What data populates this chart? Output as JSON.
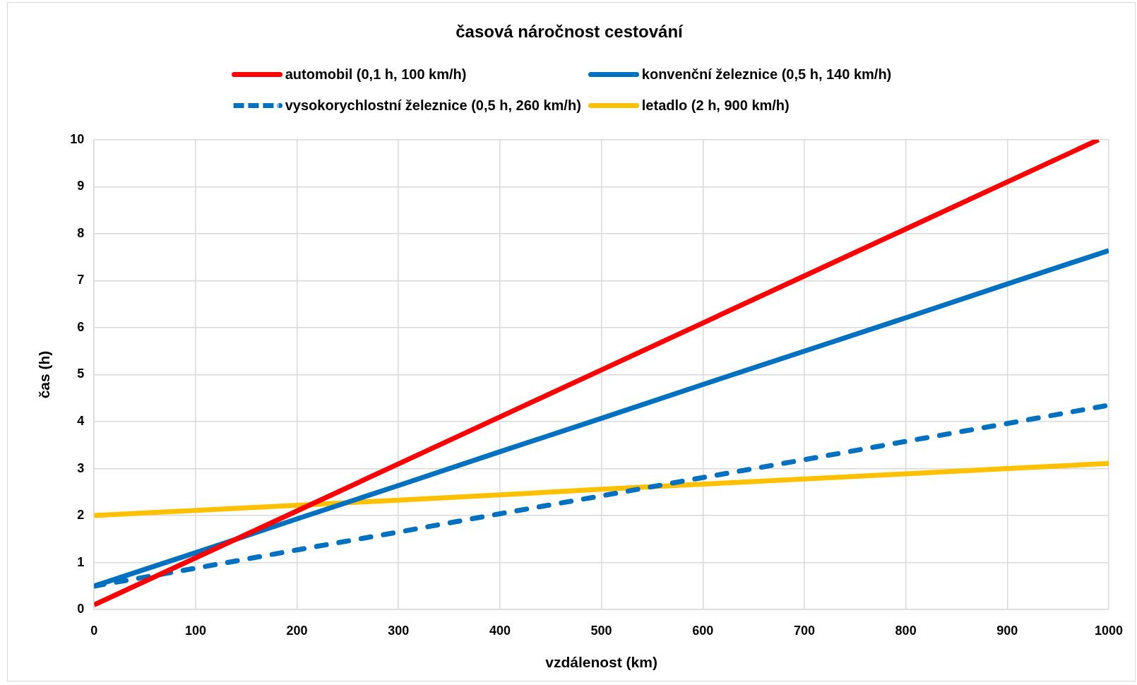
{
  "chart_data": {
    "type": "line",
    "title": "časová náročnost cestování",
    "xlabel": "vzdálenost (km)",
    "ylabel": "čas (h)",
    "x": [
      0,
      100,
      200,
      300,
      400,
      500,
      600,
      700,
      800,
      900,
      1000
    ],
    "series": [
      {
        "name": "automobil (0,1 h, 100 km/h)",
        "color": "#ff0000",
        "x": [
          0,
          100,
          200,
          300,
          400,
          500,
          600,
          700,
          800,
          900,
          990
        ],
        "values": [
          0.1,
          1.1,
          2.1,
          3.1,
          4.1,
          5.1,
          6.1,
          7.1,
          8.1,
          9.1,
          10
        ]
      },
      {
        "name": "konvenční železnice (0,5 h, 140 km/h)",
        "color": "#0070c0",
        "values": [
          0.5,
          1.21,
          1.93,
          2.64,
          3.36,
          4.07,
          4.79,
          5.5,
          6.21,
          6.93,
          7.64
        ]
      },
      {
        "name": "vysokorychlostní železnice (0,5 h, 260 km/h)",
        "color": "#0070c0",
        "line_style": "dashed",
        "values": [
          0.5,
          0.88,
          1.27,
          1.65,
          2.04,
          2.42,
          2.81,
          3.19,
          3.58,
          3.96,
          4.35
        ]
      },
      {
        "name": "letadlo (2 h, 900 km/h)",
        "color": "#ffc000",
        "values": [
          2,
          2.11,
          2.22,
          2.33,
          2.44,
          2.56,
          2.67,
          2.78,
          2.89,
          3,
          3.11
        ]
      }
    ],
    "xlim": [
      0,
      1000
    ],
    "xticks": [
      0,
      100,
      200,
      300,
      400,
      500,
      600,
      700,
      800,
      900,
      1000
    ],
    "ylim": [
      0,
      10
    ],
    "yticks": [
      0,
      1,
      2,
      3,
      4,
      5,
      6,
      7,
      8,
      9,
      10
    ],
    "grid": true,
    "legend": "top",
    "line_style": "solid",
    "marker": "none"
  }
}
